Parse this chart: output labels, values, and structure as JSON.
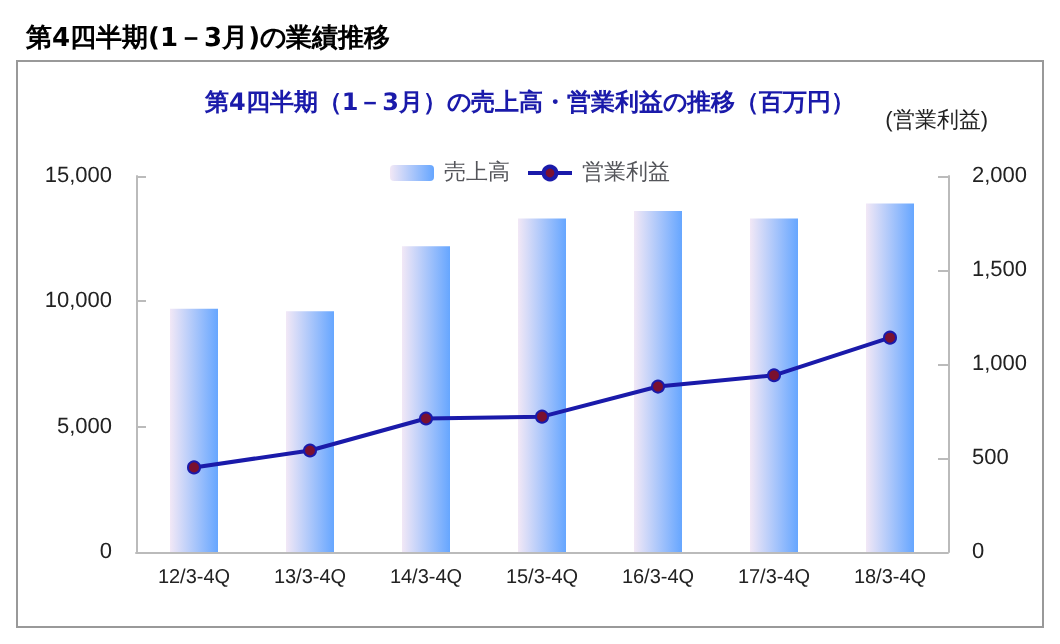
{
  "chart_data": {
    "type": "bar",
    "title": "第4四半期(1－3月)の業績推移",
    "subtitle": "第4四半期（1－3月）の売上高・営業利益の推移（百万円）",
    "y2label": "(営業利益)",
    "categories": [
      "12/3-4Q",
      "13/3-4Q",
      "14/3-4Q",
      "15/3-4Q",
      "16/3-4Q",
      "17/3-4Q",
      "18/3-4Q"
    ],
    "series": [
      {
        "name": "売上高",
        "color": "#66a6ff",
        "values": [
          9700,
          9600,
          12200,
          13300,
          13600,
          13300,
          13900
        ]
      },
      {
        "name": "営業利益",
        "type": "line",
        "axis": "y2",
        "color": "#1a1aaa",
        "values": [
          450,
          540,
          710,
          720,
          880,
          940,
          1140
        ]
      }
    ],
    "ylim": [
      0,
      15000
    ],
    "yticks": [
      0,
      {
        "value": 5000,
        "label": "5,000"
      },
      {
        "value": 10000,
        "label": "10,000"
      },
      {
        "value": 15000,
        "label": "15,000"
      }
    ],
    "y2lim": [
      0,
      2000
    ],
    "y2ticks": [
      0,
      500,
      {
        "value": 1000,
        "label": "1,000"
      },
      {
        "value": 1500,
        "label": "1,500"
      },
      {
        "value": 2000,
        "label": "2,000"
      }
    ],
    "grid": false,
    "legend": "top",
    "marker": "circle",
    "line_style": "solid"
  }
}
